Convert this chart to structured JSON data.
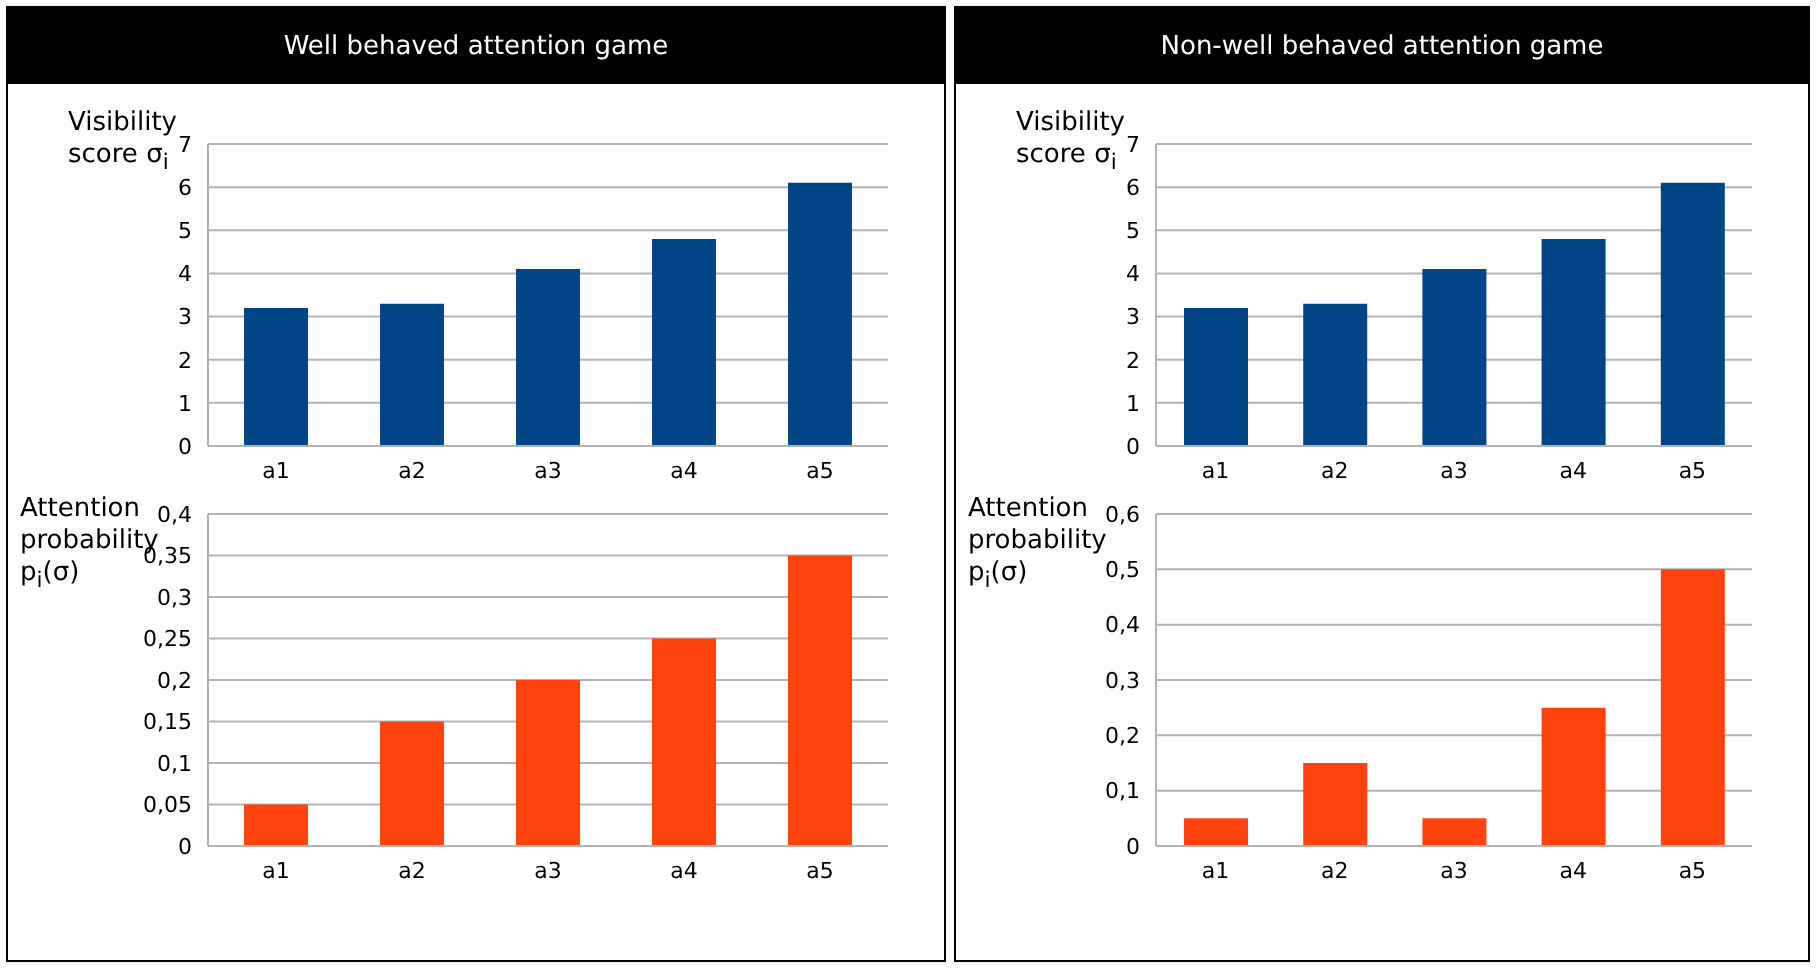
{
  "chart_data": [
    {
      "type": "bar",
      "title": "Well behaved attention game",
      "ylabel": "Visibility score σ$_{i}$",
      "categories": [
        "a1",
        "a2",
        "a3",
        "a4",
        "a5"
      ],
      "values": [
        3.2,
        3.3,
        4.1,
        4.8,
        6.1
      ],
      "color": "#004586",
      "ylim": [
        0,
        7
      ],
      "yticks": [
        0,
        1,
        2,
        3,
        4,
        5,
        6,
        7
      ],
      "grid": "y"
    },
    {
      "type": "bar",
      "ylabel": "Attention probability p$_{i}$(σ)",
      "categories": [
        "a1",
        "a2",
        "a3",
        "a4",
        "a5"
      ],
      "values": [
        0.05,
        0.15,
        0.2,
        0.25,
        0.35
      ],
      "color": "#ff420e",
      "ylim": [
        0,
        0.4
      ],
      "yticks": [
        0,
        {
          "value": 0.05,
          "label": "0,05"
        },
        {
          "value": 0.1,
          "label": "0,1"
        },
        {
          "value": 0.15,
          "label": "0,15"
        },
        {
          "value": 0.2,
          "label": "0,2"
        },
        {
          "value": 0.25,
          "label": "0,25"
        },
        {
          "value": 0.3,
          "label": "0,3"
        },
        {
          "value": 0.35,
          "label": "0,35"
        },
        {
          "value": 0.4,
          "label": "0,4"
        }
      ],
      "grid": "y"
    },
    {
      "type": "bar",
      "title": "Non-well behaved attention game",
      "ylabel": "Visibility score σ$_{i}$",
      "categories": [
        "a1",
        "a2",
        "a3",
        "a4",
        "a5"
      ],
      "values": [
        3.2,
        3.3,
        4.1,
        4.8,
        6.1
      ],
      "color": "#004586",
      "ylim": [
        0,
        7
      ],
      "yticks": [
        0,
        1,
        2,
        3,
        4,
        5,
        6,
        7
      ],
      "grid": "y"
    },
    {
      "type": "bar",
      "ylabel": "Attention probability p$_{i}$(σ)",
      "categories": [
        "a1",
        "a2",
        "a3",
        "a4",
        "a5"
      ],
      "values": [
        0.05,
        0.15,
        0.05,
        0.25,
        0.5
      ],
      "color": "#ff420e",
      "ylim": [
        0,
        0.6
      ],
      "yticks": [
        0,
        {
          "value": 0.1,
          "label": "0,1"
        },
        {
          "value": 0.2,
          "label": "0,2"
        },
        {
          "value": 0.3,
          "label": "0,3"
        },
        {
          "value": 0.4,
          "label": "0,4"
        },
        {
          "value": 0.5,
          "label": "0,5"
        },
        {
          "value": 0.6,
          "label": "0,6"
        }
      ],
      "grid": "y"
    }
  ]
}
